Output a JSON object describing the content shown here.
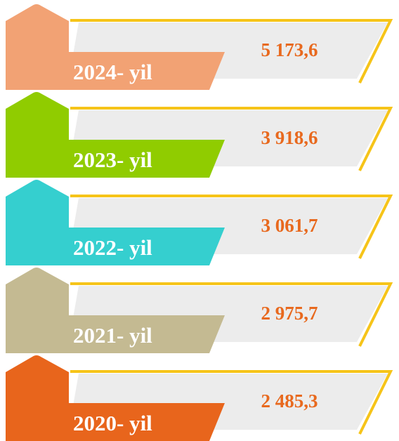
{
  "items": [
    {
      "year": "2024- yil",
      "value": "5 173,6",
      "color": "#f2a274"
    },
    {
      "year": "2023- yil",
      "value": "3 918,6",
      "color": "#90cc00"
    },
    {
      "year": "2022- yil",
      "value": "3 061,7",
      "color": "#35cfcf"
    },
    {
      "year": "2021- yil",
      "value": "2 975,7",
      "color": "#c4ba92"
    },
    {
      "year": "2020- yil",
      "value": "2 485,3",
      "color": "#e8651c"
    }
  ]
}
